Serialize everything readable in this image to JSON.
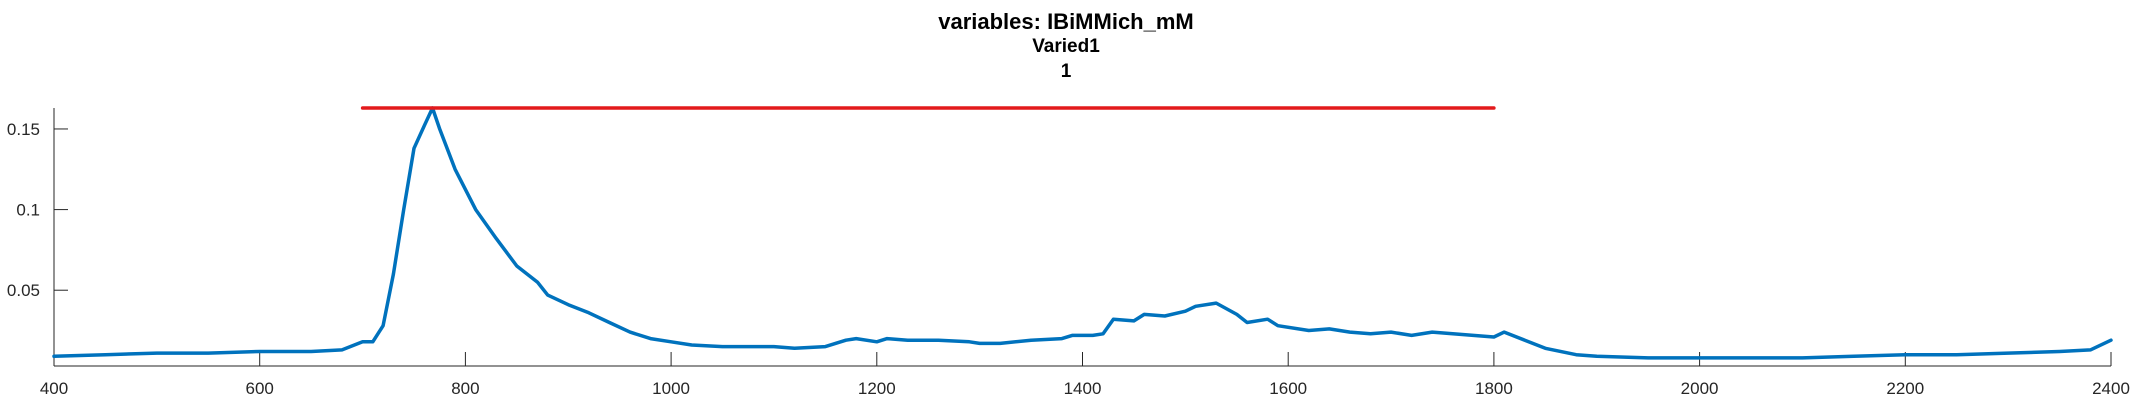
{
  "chart_data": {
    "type": "line",
    "title": "variables: IBiMMich_mM",
    "subtitle": [
      "Varied1",
      "1"
    ],
    "xlabel": "",
    "ylabel": "",
    "xlim": [
      400,
      2400
    ],
    "ylim": [
      0.003,
      0.163
    ],
    "grid": false,
    "x_ticks": [
      {
        "value": 400,
        "label": "400"
      },
      {
        "value": 600,
        "label": "600"
      },
      {
        "value": 800,
        "label": "800"
      },
      {
        "value": 1000,
        "label": "1000"
      },
      {
        "value": 1200,
        "label": "1200"
      },
      {
        "value": 1400,
        "label": "1400"
      },
      {
        "value": 1600,
        "label": "1600"
      },
      {
        "value": 1800,
        "label": "1800"
      },
      {
        "value": 2000,
        "label": "2000"
      },
      {
        "value": 2200,
        "label": "2200"
      },
      {
        "value": 2400,
        "label": "2400"
      }
    ],
    "y_ticks": [
      {
        "value": 0.05,
        "label": "0.05"
      },
      {
        "value": 0.1,
        "label": "0.1"
      },
      {
        "value": 0.15,
        "label": "0.15"
      }
    ],
    "series": [
      {
        "color": "#0072BD",
        "x": [
          400,
          450,
          500,
          550,
          600,
          650,
          680,
          700,
          710,
          720,
          730,
          740,
          750,
          760,
          768,
          775,
          790,
          810,
          830,
          850,
          870,
          880,
          900,
          920,
          940,
          960,
          980,
          1000,
          1020,
          1050,
          1080,
          1100,
          1120,
          1150,
          1170,
          1180,
          1200,
          1210,
          1230,
          1260,
          1290,
          1300,
          1320,
          1350,
          1380,
          1390,
          1410,
          1420,
          1430,
          1450,
          1460,
          1480,
          1500,
          1510,
          1530,
          1550,
          1560,
          1580,
          1590,
          1620,
          1640,
          1660,
          1680,
          1700,
          1720,
          1740,
          1760,
          1780,
          1800,
          1810,
          1830,
          1850,
          1880,
          1900,
          1950,
          2000,
          2050,
          2100,
          2150,
          2200,
          2250,
          2300,
          2350,
          2380,
          2400
        ],
        "y": [
          0.009,
          0.01,
          0.011,
          0.011,
          0.012,
          0.012,
          0.013,
          0.018,
          0.018,
          0.028,
          0.06,
          0.1,
          0.138,
          0.152,
          0.163,
          0.15,
          0.125,
          0.1,
          0.082,
          0.065,
          0.055,
          0.047,
          0.041,
          0.036,
          0.03,
          0.024,
          0.02,
          0.018,
          0.016,
          0.015,
          0.015,
          0.015,
          0.014,
          0.015,
          0.019,
          0.02,
          0.018,
          0.02,
          0.019,
          0.019,
          0.018,
          0.017,
          0.017,
          0.019,
          0.02,
          0.022,
          0.022,
          0.023,
          0.032,
          0.031,
          0.035,
          0.034,
          0.037,
          0.04,
          0.042,
          0.035,
          0.03,
          0.032,
          0.028,
          0.025,
          0.026,
          0.024,
          0.023,
          0.024,
          0.022,
          0.024,
          0.023,
          0.022,
          0.021,
          0.024,
          0.019,
          0.014,
          0.01,
          0.009,
          0.008,
          0.008,
          0.008,
          0.008,
          0.009,
          0.01,
          0.01,
          0.011,
          0.012,
          0.013,
          0.019
        ]
      },
      {
        "color": "#E31A1C",
        "x": [
          700,
          1800
        ],
        "y": [
          0.163,
          0.163
        ]
      }
    ]
  }
}
